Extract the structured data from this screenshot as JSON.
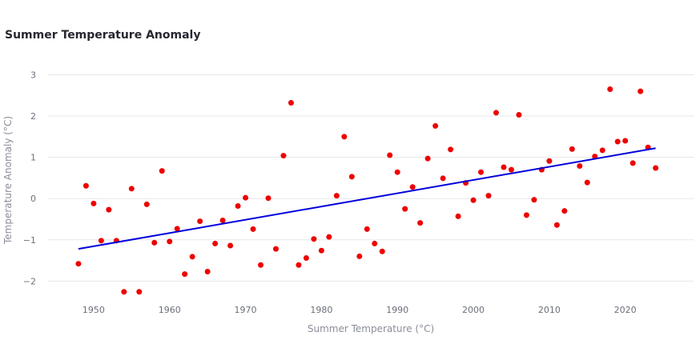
{
  "chart_data": {
    "type": "scatter",
    "title": "Summer Temperature Anomaly",
    "xlabel": "Summer Temperature (°C)",
    "ylabel": "Temperature Anomaly (°C)",
    "xlim": [
      1944,
      2029
    ],
    "ylim": [
      -2.4,
      3.3
    ],
    "x_ticks": [
      1950,
      1960,
      1970,
      1980,
      1990,
      2000,
      2010,
      2020
    ],
    "y_ticks": [
      -2,
      -1,
      0,
      1,
      2,
      3
    ],
    "y_tick_labels": [
      "−2",
      "−1",
      "0",
      "1",
      "2",
      "3"
    ],
    "grid": true,
    "series": [
      {
        "type": "scatter",
        "color": "#ee0000",
        "x": [
          1948,
          1949,
          1950,
          1951,
          1952,
          1953,
          1954,
          1955,
          1956,
          1957,
          1958,
          1959,
          1960,
          1961,
          1962,
          1963,
          1964,
          1965,
          1966,
          1967,
          1968,
          1969,
          1970,
          1971,
          1972,
          1973,
          1974,
          1975,
          1976,
          1977,
          1978,
          1979,
          1980,
          1981,
          1982,
          1983,
          1984,
          1985,
          1986,
          1987,
          1988,
          1989,
          1990,
          1991,
          1992,
          1993,
          1994,
          1995,
          1996,
          1997,
          1998,
          1999,
          2000,
          2001,
          2002,
          2003,
          2004,
          2005,
          2006,
          2007,
          2008,
          2009,
          2010,
          2011,
          2012,
          2013,
          2014,
          2015,
          2016,
          2017,
          2018,
          2019,
          2020,
          2021,
          2022,
          2023,
          2024
        ],
        "y": [
          -1.58,
          0.31,
          -0.12,
          -1.02,
          -0.27,
          -1.02,
          -2.26,
          0.24,
          -2.26,
          -0.14,
          -1.07,
          0.67,
          -1.04,
          -0.73,
          -1.83,
          -1.41,
          -0.55,
          -1.77,
          -1.09,
          -0.53,
          -1.14,
          -0.18,
          0.02,
          -0.74,
          -1.61,
          0.01,
          -1.22,
          1.04,
          2.32,
          -1.61,
          -1.44,
          -0.98,
          -1.26,
          -0.93,
          0.07,
          1.5,
          0.53,
          -1.4,
          -0.74,
          -1.09,
          -1.28,
          1.05,
          0.64,
          -0.25,
          0.28,
          -0.59,
          0.97,
          1.76,
          0.49,
          1.19,
          -0.43,
          0.38,
          -0.04,
          0.64,
          0.07,
          2.08,
          0.76,
          0.7,
          2.03,
          -0.4,
          -0.03,
          0.7,
          0.91,
          -0.64,
          -0.3,
          1.2,
          0.79,
          0.39,
          1.02,
          1.17,
          2.65,
          1.38,
          1.4,
          0.86,
          2.6,
          1.24,
          0.74
        ]
      },
      {
        "type": "line",
        "color": "#0000dd",
        "x": [
          1948,
          2024
        ],
        "y": [
          -1.22,
          1.22
        ]
      }
    ]
  }
}
